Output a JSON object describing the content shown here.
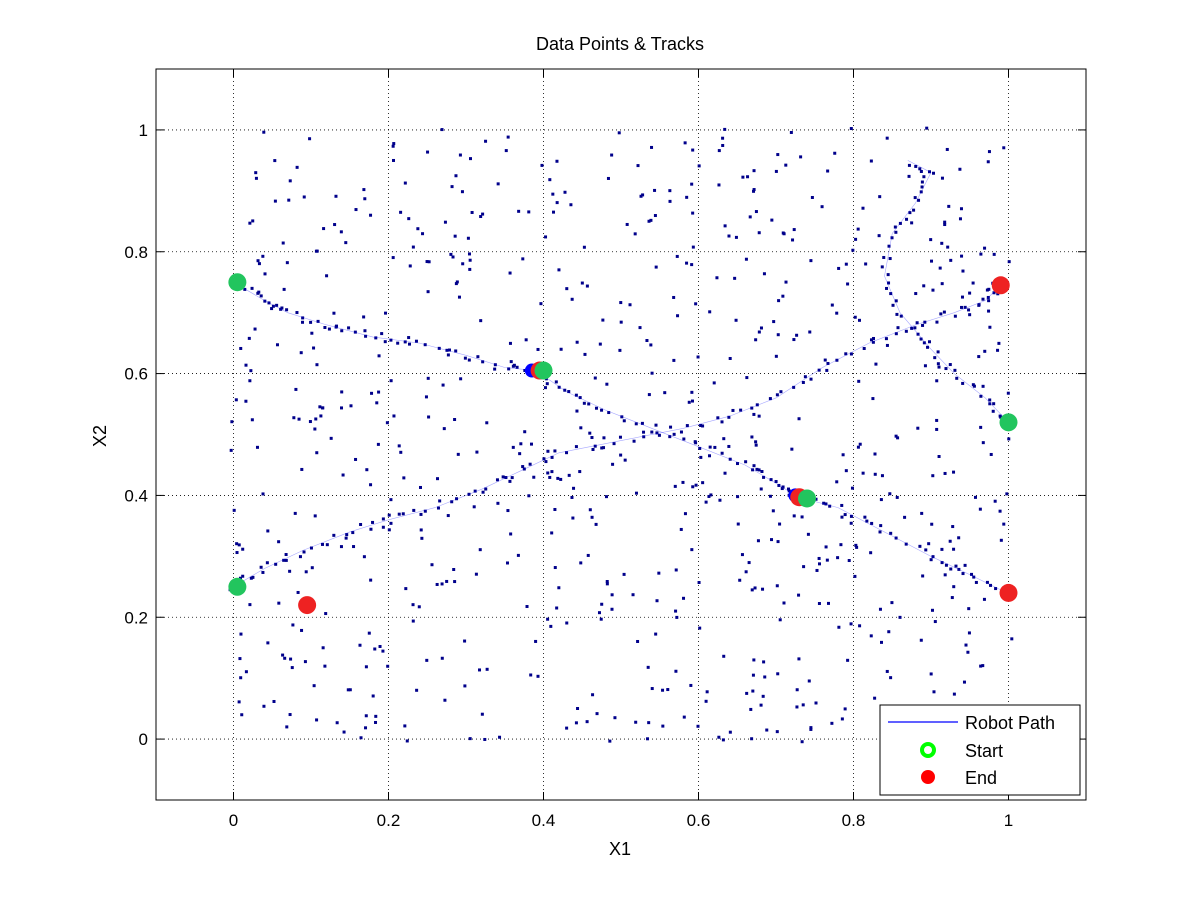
{
  "chart_data": {
    "type": "scatter",
    "title": "Data Points & Tracks",
    "xlabel": "X1",
    "ylabel": "X2",
    "xlim": [
      -0.1,
      1.1
    ],
    "ylim": [
      -0.1,
      1.1
    ],
    "xticks": [
      0,
      0.2,
      0.4,
      0.6,
      0.8,
      1
    ],
    "yticks": [
      0,
      0.2,
      0.4,
      0.6,
      0.8,
      1
    ],
    "xtick_labels": [
      "0",
      "0.2",
      "0.4",
      "0.6",
      "0.8",
      "1"
    ],
    "ytick_labels": [
      "0",
      "0.2",
      "0.4",
      "0.6",
      "0.8",
      "1"
    ],
    "grid": true,
    "legend_position": "bottom-right",
    "legend": [
      "Robot Path",
      "Start",
      "End"
    ],
    "colors": {
      "data_points": "#00008b",
      "robot_path": "#0000ff",
      "start": "#00ff00",
      "start_cluster": "#22c55e",
      "end": "#ff0000",
      "end_cluster": "#ee2222"
    },
    "series": [
      {
        "name": "Robot Path",
        "tracks": [
          [
            [
              0.0,
              0.75
            ],
            [
              0.04,
              0.72
            ],
            [
              0.07,
              0.7
            ],
            [
              0.12,
              0.68
            ],
            [
              0.18,
              0.66
            ],
            [
              0.24,
              0.65
            ],
            [
              0.3,
              0.63
            ],
            [
              0.35,
              0.61
            ],
            [
              0.39,
              0.605
            ]
          ],
          [
            [
              0.0,
              0.25
            ],
            [
              0.04,
              0.28
            ],
            [
              0.09,
              0.31
            ],
            [
              0.15,
              0.34
            ],
            [
              0.2,
              0.36
            ],
            [
              0.26,
              0.38
            ],
            [
              0.32,
              0.41
            ],
            [
              0.37,
              0.44
            ],
            [
              0.42,
              0.47
            ],
            [
              0.5,
              0.49
            ],
            [
              0.58,
              0.51
            ],
            [
              0.64,
              0.53
            ],
            [
              0.7,
              0.56
            ],
            [
              0.76,
              0.61
            ],
            [
              0.82,
              0.65
            ],
            [
              0.88,
              0.68
            ],
            [
              0.93,
              0.7
            ],
            [
              0.97,
              0.72
            ],
            [
              0.99,
              0.745
            ]
          ],
          [
            [
              0.39,
              0.605
            ],
            [
              0.43,
              0.57
            ],
            [
              0.48,
              0.54
            ],
            [
              0.54,
              0.51
            ],
            [
              0.6,
              0.48
            ],
            [
              0.66,
              0.45
            ],
            [
              0.7,
              0.42
            ],
            [
              0.725,
              0.4
            ]
          ],
          [
            [
              0.735,
              0.395
            ],
            [
              0.78,
              0.38
            ],
            [
              0.84,
              0.34
            ],
            [
              0.9,
              0.3
            ],
            [
              0.95,
              0.27
            ],
            [
              0.99,
              0.245
            ]
          ],
          [
            [
              1.0,
              0.52
            ],
            [
              0.97,
              0.56
            ],
            [
              0.93,
              0.6
            ],
            [
              0.9,
              0.64
            ],
            [
              0.86,
              0.7
            ],
            [
              0.84,
              0.76
            ],
            [
              0.85,
              0.83
            ],
            [
              0.88,
              0.88
            ],
            [
              0.9,
              0.93
            ],
            [
              0.87,
              0.95
            ]
          ]
        ]
      },
      {
        "name": "Start",
        "points": [
          [
            0.005,
            0.75
          ],
          [
            0.005,
            0.25
          ],
          [
            0.4,
            0.605
          ],
          [
            0.74,
            0.395
          ],
          [
            1.0,
            0.52
          ]
        ]
      },
      {
        "name": "End",
        "points": [
          [
            0.095,
            0.22
          ],
          [
            0.99,
            0.745
          ],
          [
            0.395,
            0.605
          ],
          [
            0.73,
            0.397
          ],
          [
            1.0,
            0.24
          ]
        ]
      }
    ],
    "blue_markers": [
      [
        0.385,
        0.605
      ],
      [
        0.725,
        0.4
      ]
    ]
  }
}
